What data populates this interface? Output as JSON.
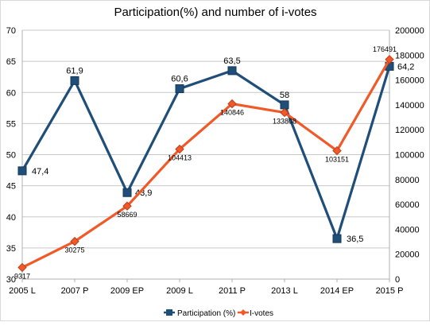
{
  "chart_data": {
    "type": "line",
    "title": "Participation(%) and number of i-votes",
    "categories": [
      "2005 L",
      "2007 P",
      "2009 EP",
      "2009 L",
      "2011 P",
      "2013 L",
      "2014 EP",
      "2015 P"
    ],
    "y_left": {
      "min": 30,
      "max": 70,
      "step": 5,
      "ticks": [
        "30",
        "35",
        "40",
        "45",
        "50",
        "55",
        "60",
        "65",
        "70"
      ]
    },
    "y_right": {
      "min": 0,
      "max": 200000,
      "step": 20000,
      "ticks": [
        "0",
        "20000",
        "40000",
        "60000",
        "80000",
        "100000",
        "120000",
        "140000",
        "160000",
        "180000",
        "200000"
      ]
    },
    "grid": "horizontal",
    "legend_position": "bottom",
    "series": [
      {
        "name": "Participation (%)",
        "axis": "left",
        "color": "#1f4e79",
        "marker": "square",
        "values": [
          47.4,
          61.9,
          43.9,
          60.6,
          63.5,
          58,
          36.5,
          64.2
        ],
        "labels": [
          "47,4",
          "61,9",
          "43,9",
          "60,6",
          "63,5",
          "58",
          "36,5",
          "64,2"
        ]
      },
      {
        "name": "I-votes",
        "axis": "right",
        "color": "#f05a28",
        "marker": "diamond",
        "values": [
          9317,
          30275,
          58669,
          104413,
          140846,
          133808,
          103151,
          176491
        ],
        "labels": [
          "9317",
          "30275",
          "58669",
          "104413",
          "140846",
          "133808",
          "103151",
          "176491"
        ]
      }
    ]
  }
}
